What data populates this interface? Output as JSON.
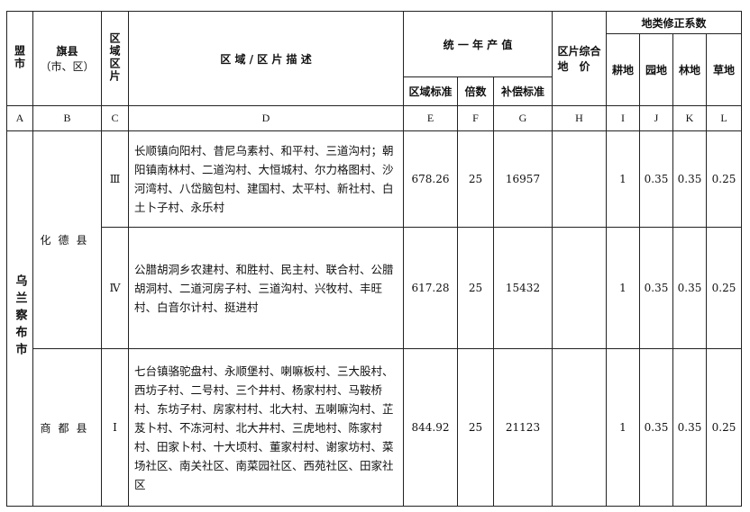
{
  "headers": {
    "league_city": "盟市",
    "banner_county": "旗县",
    "banner_county_sub": "（市、区）",
    "zone": "区域区片",
    "description": "区 域 / 区 片 描 述",
    "annual_output": "统 一 年 产 值",
    "zone_standard": "区域标准",
    "multiple": "倍数",
    "compensation_standard": "补偿标准",
    "composite_price": "区片综合地　价",
    "land_coefficient": "地类修正系数",
    "cultivated": "耕地",
    "garden": "园地",
    "forest": "林地",
    "grass": "草地"
  },
  "column_codes": [
    "A",
    "B",
    "C",
    "D",
    "E",
    "F",
    "G",
    "H",
    "I",
    "J",
    "K",
    "L"
  ],
  "league_city": "乌兰察布市",
  "rows": [
    {
      "county": "化德县",
      "zone": "Ⅲ",
      "description": "长顺镇向阳村、昔尼乌素村、和平村、三道沟村；朝阳镇南林村、二道沟村、大恒城村、尔力格图村、沙河湾村、八岱脑包村、建国村、太平村、新社村、白土卜子村、永乐村",
      "zone_standard": "678.26",
      "multiple": "25",
      "compensation": "16957",
      "composite_price": "",
      "cultivated": "1",
      "garden": "0.35",
      "forest": "0.35",
      "grass": "0.25"
    },
    {
      "county": "化德县",
      "zone": "Ⅳ",
      "description": "公腊胡洞乡农建村、和胜村、民主村、联合村、公腊胡洞村、二道河房子村、三道沟村、兴牧村、丰旺村、白音尔计村、挺进村",
      "zone_standard": "617.28",
      "multiple": "25",
      "compensation": "15432",
      "composite_price": "",
      "cultivated": "1",
      "garden": "0.35",
      "forest": "0.35",
      "grass": "0.25"
    },
    {
      "county": "商都县",
      "zone": "Ⅰ",
      "description": "七台镇骆驼盘村、永顺堡村、喇嘛板村、三大股村、西坊子村、二号村、三个井村、杨家村村、马鞍桥村、东坊子村、房家村村、北大村、五喇嘛沟村、芷芨卜村、不冻河村、北大井村、三虎地村、陈家村村、田家卜村、十大顷村、董家村村、谢家坊村、菜场社区、南关社区、南菜园社区、西苑社区、田家社区",
      "zone_standard": "844.92",
      "multiple": "25",
      "compensation": "21123",
      "composite_price": "",
      "cultivated": "1",
      "garden": "0.35",
      "forest": "0.35",
      "grass": "0.25"
    }
  ]
}
